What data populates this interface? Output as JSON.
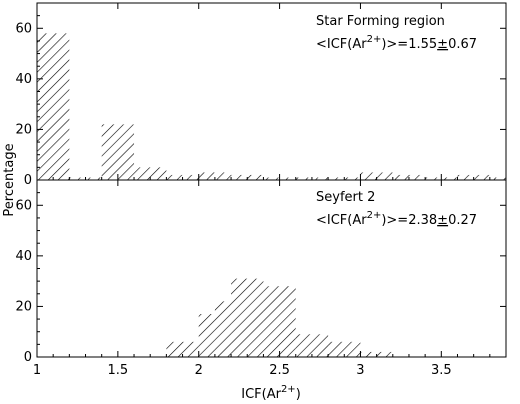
{
  "chart_data": [
    {
      "type": "bar",
      "panel": "top",
      "annotation_title": "Star Forming region",
      "annotation_stat": {
        "prefix": "<ICF(Ar",
        "sup": "2+",
        "suffix": ")>=1.55",
        "pm": "±",
        "err": "0.67"
      },
      "bin_edges": [
        1.0,
        1.2,
        1.4,
        1.6,
        1.8,
        2.0,
        2.2,
        2.4,
        2.6,
        2.8,
        3.0,
        3.2,
        3.4,
        3.6,
        3.8,
        3.9
      ],
      "values": [
        58,
        1,
        22,
        5,
        2,
        3,
        2,
        1,
        1,
        1,
        3,
        2,
        1,
        2,
        1
      ],
      "xlim": [
        1.0,
        3.9
      ],
      "ylim": [
        0,
        70
      ],
      "yticks": [
        0,
        20,
        40,
        60
      ],
      "hatch": "diagonal"
    },
    {
      "type": "bar",
      "panel": "bottom",
      "annotation_title": "Seyfert 2",
      "annotation_stat": {
        "prefix": "<ICF(Ar",
        "sup": "2+",
        "suffix": ")>=2.38",
        "pm": "±",
        "err": "0.27"
      },
      "bin_edges": [
        1.8,
        2.0,
        2.1,
        2.2,
        2.4,
        2.6,
        2.8,
        3.0,
        3.2
      ],
      "values": [
        6,
        17,
        22,
        31,
        28,
        9,
        6,
        2
      ],
      "xlim": [
        1.0,
        3.9
      ],
      "ylim": [
        0,
        70
      ],
      "yticks": [
        0,
        20,
        40,
        60
      ],
      "hatch": "diagonal"
    }
  ],
  "axes": {
    "xticks": [
      1,
      1.5,
      2,
      2.5,
      3,
      3.5
    ],
    "xtick_labels": [
      "1",
      "1.5",
      "2",
      "2.5",
      "3",
      "3.5"
    ],
    "ylabel": "Percentage",
    "xlabel": {
      "prefix": "ICF(Ar",
      "sup": "2+",
      "suffix": ")"
    }
  }
}
